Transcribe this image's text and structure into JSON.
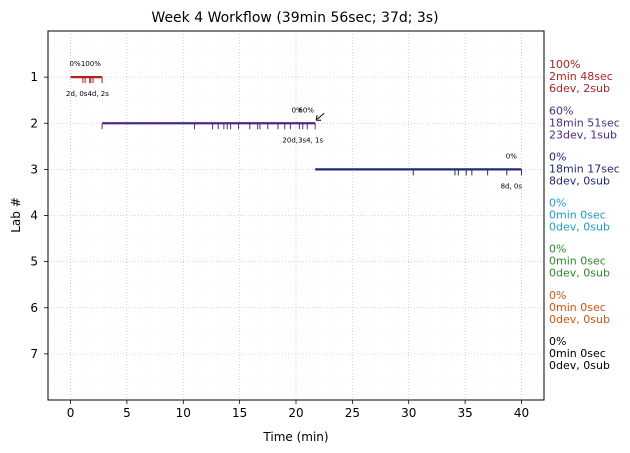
{
  "chart_data": {
    "type": "timeline",
    "title": "Week 4 Workflow (39min 56sec; 37d; 3s)",
    "xlabel": "Time (min)",
    "ylabel": "Lab #",
    "xlim": [
      -2,
      42
    ],
    "ylim": [
      8,
      0
    ],
    "x_ticks": [
      0,
      5,
      10,
      15,
      20,
      25,
      30,
      35,
      40
    ],
    "y_ticks": [
      1,
      2,
      3,
      4,
      5,
      6,
      7
    ],
    "grid": true,
    "labs": [
      {
        "lab": 1,
        "color": "#b22222",
        "start": 0,
        "end": 2.8,
        "events": [
          1.1,
          1.3,
          1.7,
          1.8,
          2.0,
          2.8
        ],
        "percent_labels": [
          {
            "x": 0.4,
            "text": "0%"
          },
          {
            "x": 1.8,
            "text": "100%"
          }
        ],
        "detail_label": {
          "x": 1.5,
          "text": "2d, 0s4d, 2s"
        },
        "side_lines": [
          "100%",
          "2min 48sec",
          "6dev, 2sub"
        ]
      },
      {
        "lab": 2,
        "color": "#4b2a8a",
        "start": 2.8,
        "end": 21.7,
        "events": [
          2.8,
          11.0,
          12.6,
          13.1,
          13.6,
          13.9,
          14.2,
          14.9,
          15.9,
          16.6,
          16.8,
          17.5,
          18.4,
          19.0,
          19.5,
          20.3,
          20.6,
          21.0,
          21.7
        ],
        "percent_labels": [
          {
            "x": 20.1,
            "text": "0%"
          },
          {
            "x": 20.9,
            "text": "60%"
          }
        ],
        "detail_label": {
          "x": 20.6,
          "text": "20d,3s4, 1s"
        },
        "side_lines": [
          "60%",
          "18min 51sec",
          "23dev, 1sub"
        ]
      },
      {
        "lab": 3,
        "color": "#1f2a7a",
        "start": 21.7,
        "end": 40.0,
        "events": [
          30.4,
          34.1,
          34.4,
          35.1,
          35.6,
          37.0,
          38.7,
          40.0
        ],
        "percent_labels": [
          {
            "x": 39.1,
            "text": "0%"
          }
        ],
        "detail_label": {
          "x": 39.1,
          "text": "8d, 0s"
        },
        "side_lines": [
          "0%",
          "18min 17sec",
          "8dev, 0sub"
        ]
      },
      {
        "lab": 4,
        "color": "#1e9bd7",
        "start": null,
        "end": null,
        "events": [],
        "percent_labels": [],
        "detail_label": null,
        "side_lines": [
          "0%",
          "0min 0sec",
          "0dev, 0sub"
        ]
      },
      {
        "lab": 5,
        "color": "#2e8b2e",
        "start": null,
        "end": null,
        "events": [],
        "percent_labels": [],
        "detail_label": null,
        "side_lines": [
          "0%",
          "0min 0sec",
          "0dev, 0sub"
        ]
      },
      {
        "lab": 6,
        "color": "#d9540a",
        "start": null,
        "end": null,
        "events": [],
        "percent_labels": [],
        "detail_label": null,
        "side_lines": [
          "0%",
          "0min 0sec",
          "0dev, 0sub"
        ]
      },
      {
        "lab": 7,
        "color": "#000000",
        "start": null,
        "end": null,
        "events": [],
        "percent_labels": [],
        "detail_label": null,
        "side_lines": [
          "0%",
          "0min 0sec",
          "0dev, 0sub"
        ]
      }
    ],
    "annotation": {
      "type": "arrow",
      "x": 21.7,
      "y": 2.0
    }
  }
}
